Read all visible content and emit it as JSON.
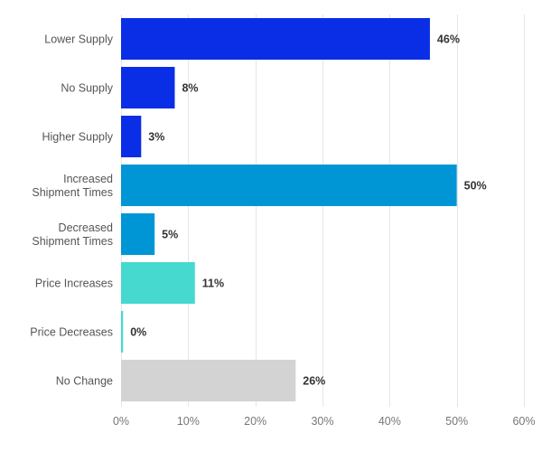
{
  "chart_data": {
    "type": "bar",
    "orientation": "horizontal",
    "categories": [
      [
        "Lower Supply"
      ],
      [
        "No Supply"
      ],
      [
        "Higher Supply"
      ],
      [
        "Increased",
        "Shipment Times"
      ],
      [
        "Decreased",
        "Shipment Times"
      ],
      [
        "Price Increases"
      ],
      [
        "Price Decreases"
      ],
      [
        "No Change"
      ]
    ],
    "values": [
      46,
      8,
      3,
      50,
      5,
      11,
      0.3,
      26
    ],
    "value_labels": [
      "46%",
      "8%",
      "3%",
      "50%",
      "5%",
      "11%",
      "0%",
      "26%"
    ],
    "colors": [
      "#0a2ee6",
      "#0a2ee6",
      "#0a2ee6",
      "#0096d6",
      "#0096d6",
      "#45d9cf",
      "#45d9cf",
      "#d3d3d3"
    ],
    "xlim": [
      0,
      60
    ],
    "x_ticks": [
      0,
      10,
      20,
      30,
      40,
      50,
      60
    ],
    "x_tick_labels": [
      "0%",
      "10%",
      "20%",
      "30%",
      "40%",
      "50%",
      "60%"
    ],
    "title": "",
    "xlabel": "",
    "ylabel": "",
    "grid": "vertical",
    "legend": "none"
  }
}
